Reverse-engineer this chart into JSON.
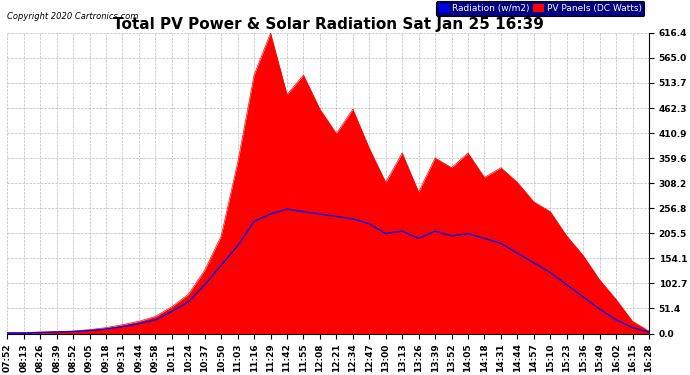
{
  "title": "Total PV Power & Solar Radiation Sat Jan 25 16:39",
  "copyright": "Copyright 2020 Cartronics.com",
  "legend_radiation": "Radiation (w/m2)",
  "legend_pv": "PV Panels (DC Watts)",
  "yticks": [
    0.0,
    51.4,
    102.7,
    154.1,
    205.5,
    256.8,
    308.2,
    359.6,
    410.9,
    462.3,
    513.7,
    565.0,
    616.4
  ],
  "xtick_labels": [
    "07:52",
    "08:13",
    "08:26",
    "08:39",
    "08:52",
    "09:05",
    "09:18",
    "09:31",
    "09:44",
    "09:58",
    "10:11",
    "10:24",
    "10:37",
    "10:50",
    "11:03",
    "11:16",
    "11:29",
    "11:42",
    "11:55",
    "12:08",
    "12:21",
    "12:34",
    "12:47",
    "13:00",
    "13:13",
    "13:26",
    "13:39",
    "13:52",
    "14:05",
    "14:18",
    "14:31",
    "14:44",
    "14:57",
    "15:10",
    "15:23",
    "15:36",
    "15:49",
    "16:02",
    "16:15",
    "16:28"
  ],
  "bg_color": "#ffffff",
  "grid_color": "#aaaaaa",
  "radiation_color": "#0000ee",
  "pv_color": "#ff0000",
  "title_fontsize": 11,
  "tick_fontsize": 6.5,
  "ymax": 616.4,
  "pv_data": [
    2,
    2,
    3,
    4,
    5,
    8,
    12,
    18,
    25,
    35,
    55,
    80,
    130,
    200,
    350,
    530,
    616,
    490,
    530,
    460,
    410,
    460,
    380,
    310,
    370,
    290,
    360,
    340,
    370,
    320,
    340,
    310,
    270,
    250,
    200,
    160,
    110,
    70,
    25,
    5
  ],
  "rad_data": [
    1,
    1,
    2,
    3,
    4,
    6,
    9,
    14,
    20,
    28,
    45,
    65,
    100,
    140,
    180,
    230,
    245,
    255,
    250,
    245,
    240,
    235,
    225,
    205,
    210,
    195,
    210,
    200,
    205,
    195,
    185,
    165,
    145,
    125,
    100,
    75,
    50,
    28,
    12,
    3
  ]
}
